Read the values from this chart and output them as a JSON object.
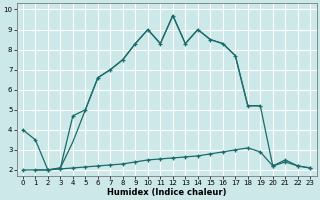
{
  "xlabel": "Humidex (Indice chaleur)",
  "bg_color": "#cce8e8",
  "grid_color": "#ffffff",
  "line_color": "#1a6b6b",
  "xlim": [
    -0.5,
    23.5
  ],
  "ylim": [
    1.7,
    10.3
  ],
  "yticks": [
    2,
    3,
    4,
    5,
    6,
    7,
    8,
    9,
    10
  ],
  "xticks": [
    0,
    1,
    2,
    3,
    4,
    5,
    6,
    7,
    8,
    9,
    10,
    11,
    12,
    13,
    14,
    15,
    16,
    17,
    18,
    19,
    20,
    21,
    22,
    23
  ],
  "line1_x": [
    0,
    1,
    2,
    3,
    4,
    5,
    6,
    7,
    8,
    9,
    10,
    11,
    12,
    13,
    14,
    15,
    16,
    17,
    18,
    19,
    20,
    21,
    22,
    23
  ],
  "line1_y": [
    4.0,
    3.5,
    2.0,
    2.1,
    4.7,
    5.0,
    6.6,
    7.0,
    7.5,
    8.3,
    9.0,
    8.3,
    9.7,
    8.3,
    9.0,
    8.5,
    8.3,
    7.7,
    5.2,
    5.2,
    2.2,
    2.5,
    2.2,
    2.1
  ],
  "line2_x": [
    0,
    1,
    2,
    3,
    4,
    5,
    6,
    7,
    8,
    9,
    10,
    11,
    12,
    13,
    14,
    15,
    16,
    17,
    18,
    19,
    20,
    21,
    22,
    23
  ],
  "line2_y": [
    2.0,
    2.0,
    2.0,
    2.05,
    2.1,
    2.15,
    2.2,
    2.25,
    2.3,
    2.4,
    2.5,
    2.55,
    2.6,
    2.65,
    2.7,
    2.8,
    2.9,
    3.0,
    3.1,
    2.9,
    2.2,
    2.4,
    2.2,
    2.1
  ],
  "line3_x": [
    1,
    2,
    3,
    4,
    5,
    6,
    7,
    8,
    9,
    10,
    11,
    12,
    13,
    14,
    15,
    16,
    17,
    18,
    19
  ],
  "line3_y": [
    2.0,
    2.0,
    2.1,
    3.4,
    5.0,
    6.6,
    7.0,
    7.5,
    8.3,
    9.0,
    8.3,
    9.7,
    8.3,
    9.0,
    8.5,
    8.3,
    7.7,
    5.2,
    5.2
  ]
}
